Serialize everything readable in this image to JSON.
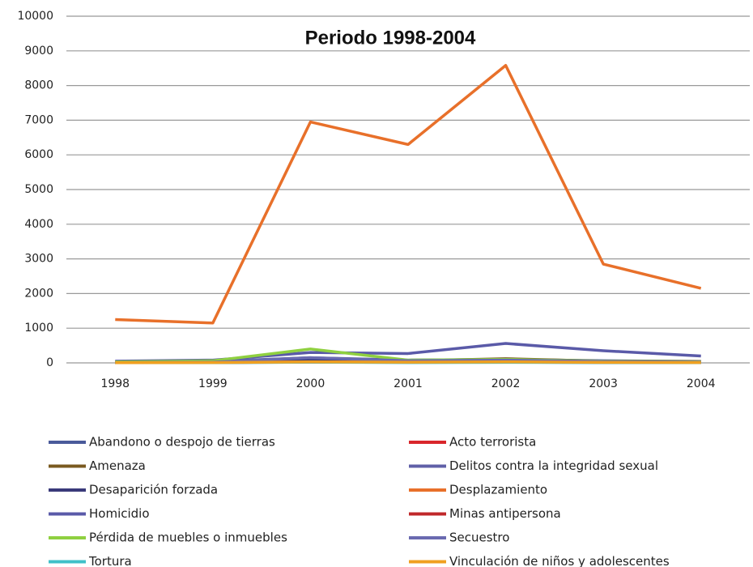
{
  "chart_data": {
    "type": "line",
    "title": "Periodo 1998-2004",
    "categories": [
      "1998",
      "1999",
      "2000",
      "2001",
      "2002",
      "2003",
      "2004"
    ],
    "ylim": [
      0,
      10000
    ],
    "yticks": [
      0,
      1000,
      2000,
      3000,
      4000,
      5000,
      6000,
      7000,
      8000,
      9000,
      10000
    ],
    "grid": true,
    "series": [
      {
        "name": "Abandono o despojo de tierras",
        "color": "#4a5a9a",
        "values": [
          20,
          40,
          150,
          80,
          100,
          60,
          40
        ]
      },
      {
        "name": "Acto terrorista",
        "color": "#d9262b",
        "values": [
          10,
          20,
          60,
          30,
          40,
          20,
          15
        ]
      },
      {
        "name": "Amenaza",
        "color": "#7a5a20",
        "values": [
          20,
          30,
          100,
          60,
          120,
          50,
          40
        ]
      },
      {
        "name": "Delitos contra la integridad sexual",
        "color": "#6060a8",
        "values": [
          5,
          10,
          20,
          15,
          20,
          10,
          10
        ]
      },
      {
        "name": "Desaparición forzada",
        "color": "#3a3a7a",
        "values": [
          10,
          20,
          80,
          50,
          80,
          40,
          30
        ]
      },
      {
        "name": "Desplazamiento",
        "color": "#e8702a",
        "values": [
          1250,
          1150,
          6950,
          6300,
          8580,
          2850,
          2150
        ]
      },
      {
        "name": "Homicidio",
        "color": "#5a5aa8",
        "values": [
          50,
          80,
          300,
          270,
          560,
          350,
          200
        ]
      },
      {
        "name": "Minas antipersona",
        "color": "#c0282a",
        "values": [
          5,
          10,
          30,
          20,
          30,
          15,
          10
        ]
      },
      {
        "name": "Pérdida de muebles o inmuebles",
        "color": "#8fd040",
        "values": [
          30,
          60,
          400,
          80,
          100,
          50,
          30
        ]
      },
      {
        "name": "Secuestro",
        "color": "#6a6ab0",
        "values": [
          10,
          20,
          150,
          60,
          80,
          40,
          20
        ]
      },
      {
        "name": "Tortura",
        "color": "#40c0c8",
        "values": [
          5,
          5,
          20,
          10,
          15,
          10,
          5
        ]
      },
      {
        "name": "Vinculación de niños y adolescentes",
        "color": "#f0a020",
        "values": [
          5,
          10,
          30,
          20,
          30,
          15,
          10
        ]
      }
    ]
  }
}
